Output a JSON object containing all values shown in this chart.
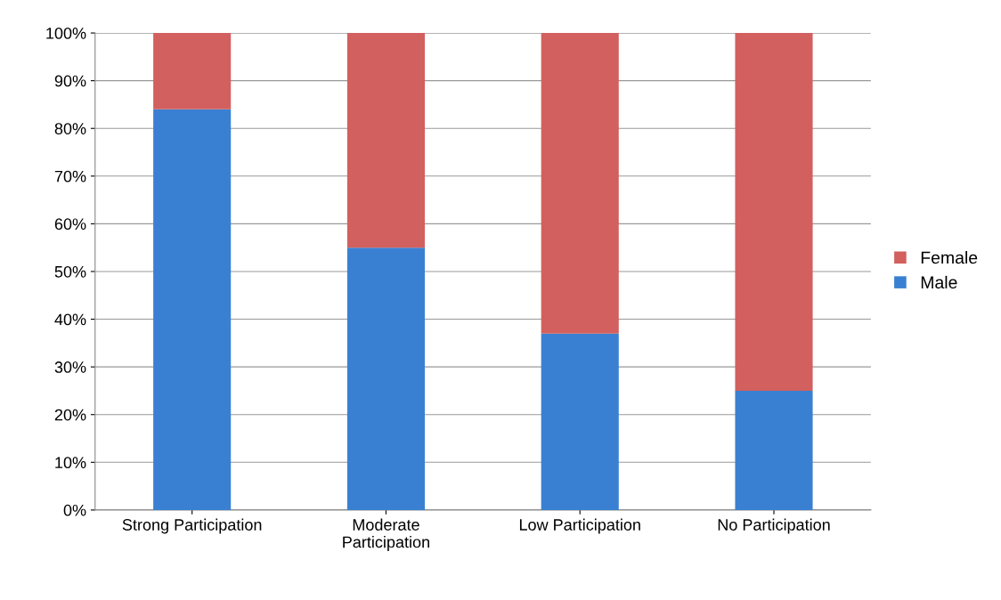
{
  "chart_data": {
    "type": "bar",
    "stacked": true,
    "categories": [
      "Strong Participation",
      "Moderate\nParticipation",
      "Low Participation",
      "No Participation"
    ],
    "series": [
      {
        "name": "Male",
        "color": "#3a80d2",
        "values": [
          84,
          55,
          37,
          25
        ]
      },
      {
        "name": "Female",
        "color": "#d2605e",
        "values": [
          16,
          45,
          63,
          75
        ]
      }
    ],
    "ylim": [
      0,
      100
    ],
    "yticks": [
      {
        "value": 0,
        "label": "0%"
      },
      {
        "value": 10,
        "label": "10%"
      },
      {
        "value": 20,
        "label": "20%"
      },
      {
        "value": 30,
        "label": "30%"
      },
      {
        "value": 40,
        "label": "40%"
      },
      {
        "value": 50,
        "label": "50%"
      },
      {
        "value": 60,
        "label": "60%"
      },
      {
        "value": 70,
        "label": "70%"
      },
      {
        "value": 80,
        "label": "80%"
      },
      {
        "value": 90,
        "label": "90%"
      },
      {
        "value": 100,
        "label": "100%"
      }
    ],
    "grid": "y",
    "legend": "right"
  }
}
